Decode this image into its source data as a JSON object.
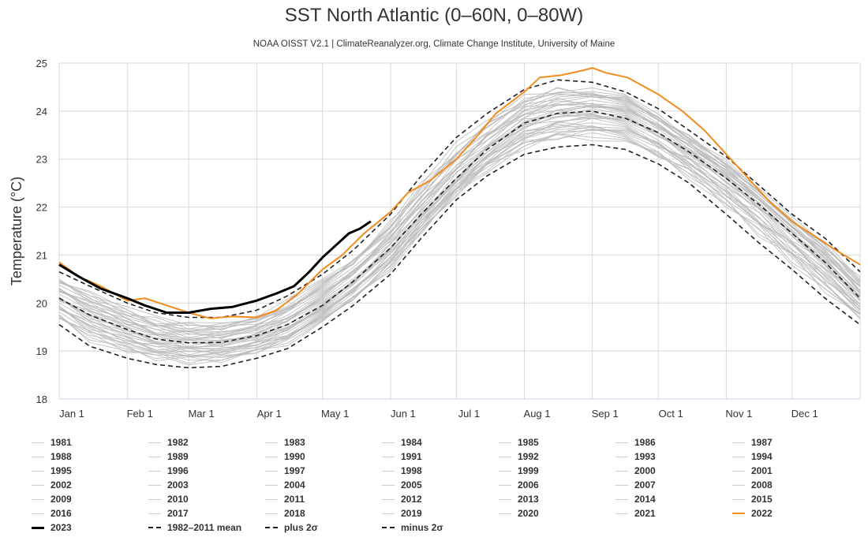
{
  "chart_data": {
    "type": "line",
    "title": "SST North Atlantic (0–60N, 0–80W)",
    "subtitle": "NOAA OISST V2.1 | ClimateReanalyzer.org, Climate Change Institute, University of Maine",
    "ylabel": "Temperature (°C)",
    "xlabel": "",
    "ylim": [
      18,
      25
    ],
    "yticks": [
      18,
      19,
      20,
      21,
      22,
      23,
      24,
      25
    ],
    "xlim_day_of_year": [
      1,
      366
    ],
    "xticks": [
      {
        "label": "Jan 1",
        "day": 1
      },
      {
        "label": "Feb 1",
        "day": 32
      },
      {
        "label": "Mar 1",
        "day": 60
      },
      {
        "label": "Apr 1",
        "day": 91
      },
      {
        "label": "May 1",
        "day": 121
      },
      {
        "label": "Jun 1",
        "day": 152
      },
      {
        "label": "Jul 1",
        "day": 182
      },
      {
        "label": "Aug 1",
        "day": 213
      },
      {
        "label": "Sep 1",
        "day": 244
      },
      {
        "label": "Oct 1",
        "day": 274
      },
      {
        "label": "Nov 1",
        "day": 305
      },
      {
        "label": "Dec 1",
        "day": 335
      }
    ],
    "grid": true,
    "legend_position": "bottom",
    "colors": {
      "grey": "#bbbbbb",
      "orange": "#f28c1e",
      "black": "#000000",
      "dashed": "#222222"
    },
    "series": [
      {
        "name": "1982-2011 mean",
        "style": "dashed",
        "x": [
          1,
          15,
          32,
          45,
          60,
          75,
          91,
          105,
          121,
          135,
          152,
          166,
          182,
          196,
          213,
          228,
          244,
          259,
          274,
          288,
          305,
          320,
          335,
          350,
          366
        ],
        "y": [
          20.1,
          19.75,
          19.45,
          19.25,
          19.17,
          19.18,
          19.32,
          19.55,
          19.95,
          20.45,
          21.15,
          21.85,
          22.6,
          23.2,
          23.75,
          23.95,
          24.0,
          23.85,
          23.55,
          23.15,
          22.6,
          22.05,
          21.45,
          20.85,
          20.1
        ]
      },
      {
        "name": "plus 2σ",
        "style": "dashed",
        "x": [
          1,
          15,
          32,
          45,
          60,
          75,
          91,
          105,
          121,
          135,
          152,
          166,
          182,
          196,
          213,
          228,
          244,
          259,
          274,
          288,
          305,
          320,
          335,
          350,
          366
        ],
        "y": [
          20.65,
          20.35,
          20.0,
          19.8,
          19.7,
          19.7,
          19.85,
          20.15,
          20.6,
          21.1,
          21.85,
          22.65,
          23.45,
          23.95,
          24.45,
          24.65,
          24.6,
          24.4,
          24.05,
          23.6,
          23.05,
          22.45,
          21.85,
          21.35,
          20.65
        ]
      },
      {
        "name": "minus 2σ",
        "style": "dashed",
        "x": [
          1,
          15,
          32,
          45,
          60,
          75,
          91,
          105,
          121,
          135,
          152,
          166,
          182,
          196,
          213,
          228,
          244,
          259,
          274,
          288,
          305,
          320,
          335,
          350,
          366
        ],
        "y": [
          19.55,
          19.1,
          18.85,
          18.72,
          18.65,
          18.68,
          18.85,
          19.05,
          19.5,
          19.95,
          20.6,
          21.35,
          22.15,
          22.65,
          23.1,
          23.25,
          23.3,
          23.2,
          22.9,
          22.5,
          21.85,
          21.25,
          20.7,
          20.1,
          19.55
        ]
      },
      {
        "name": "2022",
        "style": "orange",
        "x": [
          1,
          10,
          20,
          32,
          40,
          50,
          60,
          70,
          80,
          91,
          100,
          110,
          121,
          130,
          140,
          152,
          160,
          170,
          182,
          190,
          200,
          213,
          220,
          230,
          240,
          244,
          250,
          260,
          274,
          285,
          295,
          305,
          315,
          325,
          335,
          345,
          355,
          366
        ],
        "y": [
          20.85,
          20.55,
          20.35,
          20.05,
          20.1,
          19.95,
          19.8,
          19.68,
          19.72,
          19.7,
          19.85,
          20.2,
          20.7,
          21.0,
          21.45,
          21.9,
          22.3,
          22.55,
          23.0,
          23.4,
          23.95,
          24.4,
          24.7,
          24.75,
          24.85,
          24.9,
          24.8,
          24.7,
          24.35,
          24.0,
          23.6,
          23.1,
          22.6,
          22.1,
          21.7,
          21.4,
          21.1,
          20.8
        ]
      },
      {
        "name": "2023",
        "style": "black",
        "x": [
          1,
          10,
          20,
          32,
          40,
          50,
          60,
          70,
          80,
          91,
          100,
          108,
          115,
          121,
          127,
          133,
          138,
          143
        ],
        "y": [
          20.8,
          20.55,
          20.3,
          20.1,
          19.95,
          19.8,
          19.8,
          19.88,
          19.92,
          20.05,
          20.2,
          20.35,
          20.65,
          20.95,
          21.2,
          21.45,
          21.55,
          21.7
        ]
      }
    ],
    "historical_years": {
      "note_style": "grey thin lines, one per year",
      "years": [
        1981,
        1982,
        1983,
        1984,
        1985,
        1986,
        1987,
        1988,
        1989,
        1990,
        1991,
        1992,
        1993,
        1994,
        1995,
        1996,
        1997,
        1998,
        1999,
        2000,
        2001,
        2002,
        2003,
        2004,
        2005,
        2006,
        2007,
        2008,
        2009,
        2010,
        2011,
        2012,
        2013,
        2014,
        2015,
        2016,
        2017,
        2018,
        2019,
        2020,
        2021
      ]
    }
  },
  "legend": {
    "items": [
      {
        "label": "1981",
        "style": "grey"
      },
      {
        "label": "1982",
        "style": "grey"
      },
      {
        "label": "1983",
        "style": "grey"
      },
      {
        "label": "1984",
        "style": "grey"
      },
      {
        "label": "1985",
        "style": "grey"
      },
      {
        "label": "1986",
        "style": "grey"
      },
      {
        "label": "1987",
        "style": "grey"
      },
      {
        "label": "1988",
        "style": "grey"
      },
      {
        "label": "1989",
        "style": "grey"
      },
      {
        "label": "1990",
        "style": "grey"
      },
      {
        "label": "1991",
        "style": "grey"
      },
      {
        "label": "1992",
        "style": "grey"
      },
      {
        "label": "1993",
        "style": "grey"
      },
      {
        "label": "1994",
        "style": "grey"
      },
      {
        "label": "1995",
        "style": "grey"
      },
      {
        "label": "1996",
        "style": "grey"
      },
      {
        "label": "1997",
        "style": "grey"
      },
      {
        "label": "1998",
        "style": "grey"
      },
      {
        "label": "1999",
        "style": "grey"
      },
      {
        "label": "2000",
        "style": "grey"
      },
      {
        "label": "2001",
        "style": "grey"
      },
      {
        "label": "2002",
        "style": "grey"
      },
      {
        "label": "2003",
        "style": "grey"
      },
      {
        "label": "2004",
        "style": "grey"
      },
      {
        "label": "2005",
        "style": "grey"
      },
      {
        "label": "2006",
        "style": "grey"
      },
      {
        "label": "2007",
        "style": "grey"
      },
      {
        "label": "2008",
        "style": "grey"
      },
      {
        "label": "2009",
        "style": "grey"
      },
      {
        "label": "2010",
        "style": "grey"
      },
      {
        "label": "2011",
        "style": "grey"
      },
      {
        "label": "2012",
        "style": "grey"
      },
      {
        "label": "2013",
        "style": "grey"
      },
      {
        "label": "2014",
        "style": "grey"
      },
      {
        "label": "2015",
        "style": "grey"
      },
      {
        "label": "2016",
        "style": "grey"
      },
      {
        "label": "2017",
        "style": "grey"
      },
      {
        "label": "2018",
        "style": "grey"
      },
      {
        "label": "2019",
        "style": "grey"
      },
      {
        "label": "2020",
        "style": "grey"
      },
      {
        "label": "2021",
        "style": "grey"
      },
      {
        "label": "2022",
        "style": "orange"
      },
      {
        "label": "2023",
        "style": "black"
      },
      {
        "label": "1982–2011 mean",
        "style": "dashed"
      },
      {
        "label": "plus 2σ",
        "style": "dashdot"
      },
      {
        "label": "minus 2σ",
        "style": "dashdot"
      }
    ]
  }
}
